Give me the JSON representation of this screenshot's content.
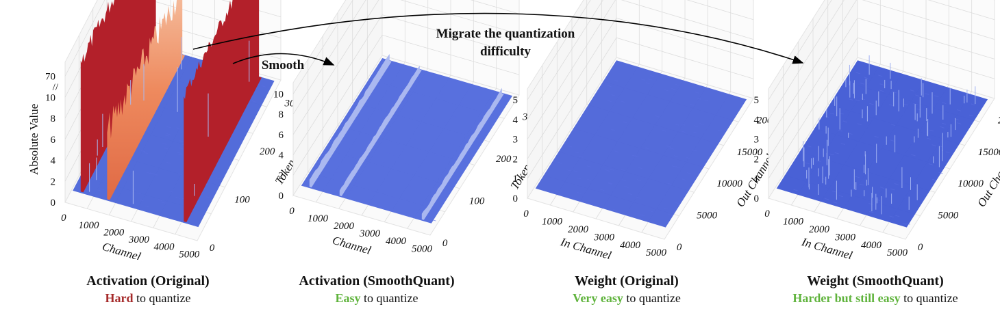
{
  "colors": {
    "hard": "#a52a2a",
    "easy": "#5fb33c",
    "surface_low": "#3d55d6",
    "surface_mid": "#aab8f0",
    "surface_high": "#b3202a",
    "surface_orange": "#f2a07a"
  },
  "annotations": {
    "migrate_line1": "Migrate the quantization",
    "migrate_line2": "difficulty",
    "smooth": "Smooth"
  },
  "panels": [
    {
      "title": "Activation (Original)",
      "sub_highlight": "Hard",
      "sub_rest": " to quantize",
      "sub_color": "#a52a2a",
      "zlabel": "Absolute Value",
      "xlabel": "Channel",
      "ylabel": "Token"
    },
    {
      "title": "Activation (SmoothQuant)",
      "sub_highlight": "Easy",
      "sub_rest": " to quantize",
      "sub_color": "#5fb33c",
      "xlabel": "Channel",
      "ylabel": "Token"
    },
    {
      "title": "Weight (Original)",
      "sub_highlight": "Very easy",
      "sub_rest": " to quantize",
      "sub_color": "#5fb33c",
      "xlabel": "In Channel",
      "ylabel": "Out Channel"
    },
    {
      "title": "Weight (SmoothQuant)",
      "sub_highlight": "Harder but still easy",
      "sub_rest": " to quantize",
      "sub_color": "#5fb33c",
      "xlabel": "In Channel",
      "ylabel": "Out Channel"
    }
  ],
  "chart_data": [
    {
      "type": "surface3d",
      "title": "Activation (Original)",
      "xlabel": "Channel",
      "ylabel": "Token",
      "zlabel": "Absolute Value",
      "x_ticks": [
        "0",
        "1000",
        "2000",
        "3000",
        "4000",
        "5000"
      ],
      "y_ticks": [
        "0",
        "100",
        "200",
        "300"
      ],
      "z_ticks": [
        "0",
        "2",
        "4",
        "6",
        "8",
        "10",
        "70"
      ],
      "xlim": [
        0,
        5000
      ],
      "ylim": [
        0,
        330
      ],
      "z_broken_axis": true,
      "outlier_channels": [
        {
          "channel": 100,
          "value": 70
        },
        {
          "channel": 1300,
          "value": 10
        },
        {
          "channel": 4500,
          "value": 10
        }
      ],
      "typical_value": 0.5
    },
    {
      "type": "surface3d",
      "title": "Activation (SmoothQuant)",
      "xlabel": "Channel",
      "ylabel": "Token",
      "x_ticks": [
        "0",
        "1000",
        "2000",
        "3000",
        "4000",
        "5000"
      ],
      "y_ticks": [
        "0",
        "100",
        "200",
        "300"
      ],
      "z_ticks": [
        "0",
        "2",
        "4",
        "6",
        "8",
        "10"
      ],
      "xlim": [
        0,
        5000
      ],
      "ylim": [
        0,
        330
      ],
      "zlim": [
        0,
        12
      ],
      "ridge_channels": [
        {
          "channel": 100,
          "value": 1.5
        },
        {
          "channel": 1300,
          "value": 1.2
        },
        {
          "channel": 4500,
          "value": 1.2
        }
      ],
      "typical_value": 0.7
    },
    {
      "type": "surface3d",
      "title": "Weight (Original)",
      "xlabel": "In Channel",
      "ylabel": "Out Channel",
      "x_ticks": [
        "0",
        "1000",
        "2000",
        "3000",
        "4000",
        "5000"
      ],
      "y_ticks": [
        "0",
        "5000",
        "10000",
        "15000",
        "20000"
      ],
      "z_ticks": [
        "0",
        "1",
        "2",
        "3",
        "4",
        "5"
      ],
      "xlim": [
        0,
        5000
      ],
      "ylim": [
        0,
        21000
      ],
      "zlim": [
        0,
        5
      ],
      "typical_value": 0.1
    },
    {
      "type": "surface3d",
      "title": "Weight (SmoothQuant)",
      "xlabel": "In Channel",
      "ylabel": "Out Channel",
      "x_ticks": [
        "0",
        "1000",
        "2000",
        "3000",
        "4000",
        "5000"
      ],
      "y_ticks": [
        "0",
        "5000",
        "10000",
        "15000",
        "20000"
      ],
      "z_ticks": [
        "0",
        "1",
        "2",
        "3",
        "4",
        "5"
      ],
      "xlim": [
        0,
        5000
      ],
      "ylim": [
        0,
        21000
      ],
      "zlim": [
        0,
        5
      ],
      "typical_value": 0.2,
      "spike_max": 1.2
    }
  ]
}
